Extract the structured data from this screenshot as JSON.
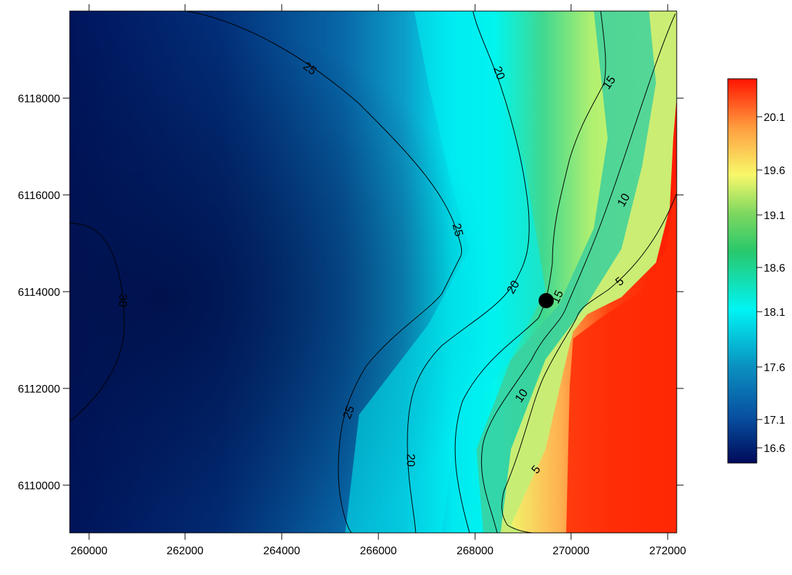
{
  "map": {
    "x_ticks": [
      "260000",
      "262000",
      "264000",
      "266000",
      "268000",
      "270000",
      "272000"
    ],
    "y_ticks": [
      "6118000",
      "6116000",
      "6114000",
      "6112000",
      "6110000"
    ],
    "contour_labels": [
      "25",
      "25",
      "25",
      "30",
      "20",
      "20",
      "20",
      "15",
      "15",
      "10",
      "10",
      "5",
      "5"
    ],
    "colorbar_labels": [
      "20.1",
      "19.6",
      "19.1",
      "18.6",
      "18.1",
      "17.6",
      "17.1",
      "16.6"
    ],
    "colors": {
      "deep": "#00145c",
      "mid_blue": "#0a6ab0",
      "cyan": "#00f4f4",
      "green": "#3ecf6e",
      "yellow": "#f7f86a",
      "orange": "#ffa040",
      "red": "#ff1a00"
    }
  }
}
